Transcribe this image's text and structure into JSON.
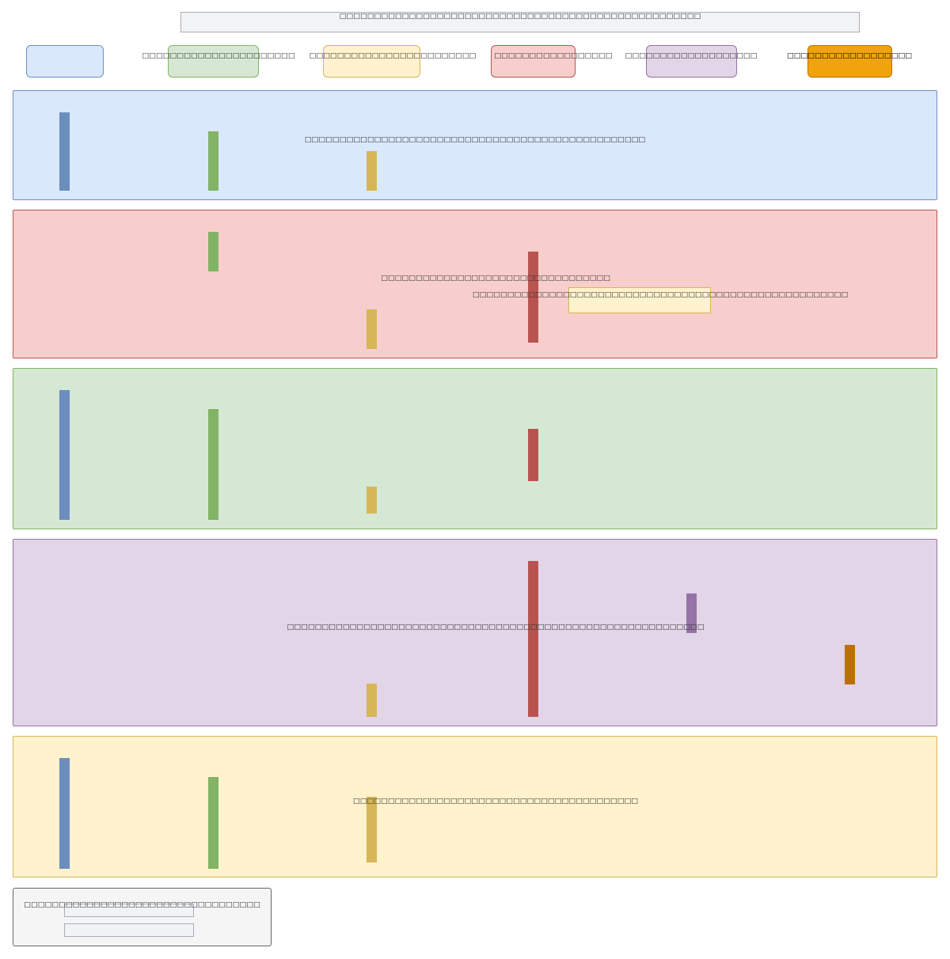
{
  "title": "□□□□□□□□□□□□□□□□□□□□□□□□□□□□□□□□□□□□□□□□□□□□□□□□□□□□",
  "legend": [
    {
      "label": ""
    },
    {
      "label": "□□□□□□□□□□□□□□□□□□□□□□"
    },
    {
      "label": "□□□□□□□□□□□□□□□□□□□□□□□□"
    },
    {
      "label": "□□□□□□□□□□□□□□□□□"
    },
    {
      "label": "□□□□□□□□□□□□□□□□□□□"
    },
    {
      "label": "□□□□□□□□□□□□□□□□□□"
    }
  ],
  "lanes": [
    {
      "texts": [
        "□□□□□□□□□□□□□□□□□□□□□□□□□□□□□□□□□□□□□□□□□□□□□□□□□"
      ]
    },
    {
      "texts": [
        "□□□□□□□□□□□□□□□□□□□□□□□□□□□□□□□□□",
        "□□□□□□□□□□□□□□□□□□□□□□□□□□□□□□□□□□□□□□□□□□□□□□□□□□□□□□"
      ]
    },
    {
      "texts": []
    },
    {
      "texts": [
        "□□□□□□□□□□□□□□□□□□□□□□□□□□□□□□□□□□□□□□□□□□□□□□□□□□□□□□□□□□□□"
      ]
    },
    {
      "texts": [
        "□□□□□□□□□□□□□□□□□□□□□□□□□□□□□□□□□□□□□□□□□"
      ]
    }
  ],
  "footer": {
    "text": "□□□□□□□□□□□□□□□□□□□□□□□□□□□□□□□□□□"
  },
  "colors": {
    "blue": "#dae8fc",
    "green": "#d5e8d4",
    "yellow": "#fff2cc",
    "red": "#f8cecc",
    "purple": "#e1d5e7",
    "orange": "#f0a30a"
  }
}
